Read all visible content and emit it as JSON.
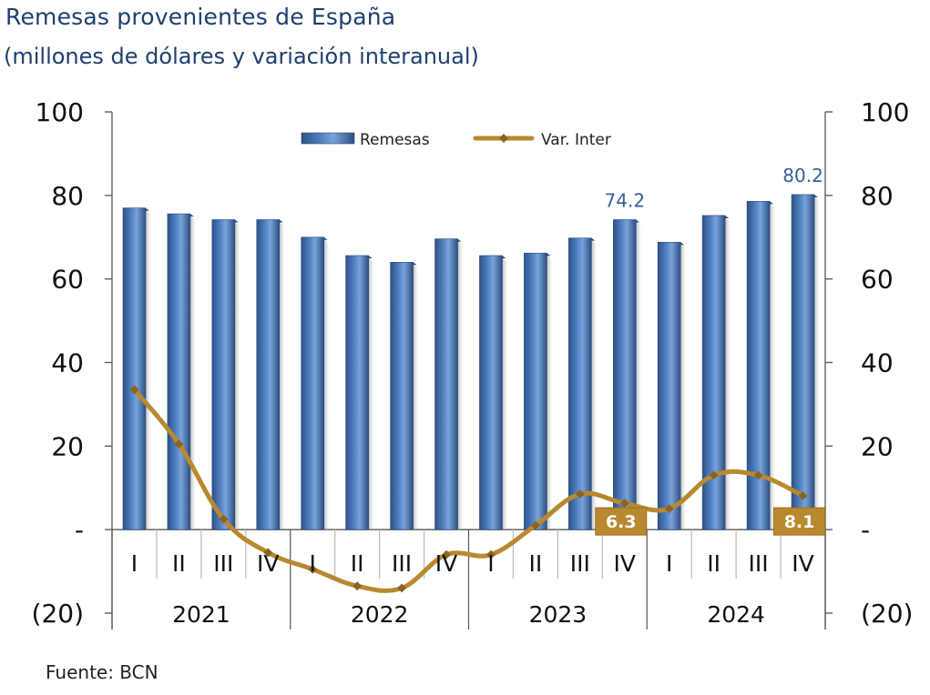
{
  "title": "Remesas provenientes de España",
  "subtitle": "(millones de dólares y variación interanual)",
  "source": "Fuente: BCN",
  "chart_data": {
    "type": "bar",
    "categories": [
      "I",
      "II",
      "III",
      "IV",
      "I",
      "II",
      "III",
      "IV",
      "I",
      "II",
      "III",
      "IV",
      "I",
      "II",
      "III",
      "IV"
    ],
    "years": [
      "2021",
      "2022",
      "2023",
      "2024"
    ],
    "ylim": [
      -20,
      100
    ],
    "y_ticks": [
      -20,
      0,
      20,
      40,
      60,
      80,
      100
    ],
    "y_tick_labels": [
      "(20)",
      "-",
      "20",
      "40",
      "60",
      "80",
      "100"
    ],
    "series": [
      {
        "name": "Remesas",
        "type": "bar",
        "color": "#3f6ea9",
        "values": [
          77.0,
          75.6,
          74.2,
          74.2,
          70.0,
          65.6,
          64.0,
          69.6,
          65.6,
          66.2,
          69.8,
          74.2,
          68.8,
          75.2,
          78.6,
          80.2
        ]
      },
      {
        "name": "Var. Inter",
        "type": "line",
        "color": "#b8892e",
        "values": [
          33.5,
          20.5,
          2.5,
          -5.5,
          -9.5,
          -13.5,
          -14.0,
          -6.0,
          -6.0,
          1.0,
          8.5,
          6.3,
          5.0,
          13.0,
          13.0,
          8.1
        ]
      }
    ],
    "bar_labels": [
      {
        "index": 11,
        "text": "74.2"
      },
      {
        "index": 15,
        "text": "80.2"
      }
    ],
    "line_labels": [
      {
        "index": 11,
        "text": "6.3"
      },
      {
        "index": 15,
        "text": "8.1"
      }
    ],
    "legend_position": "top-center",
    "grid": false
  }
}
